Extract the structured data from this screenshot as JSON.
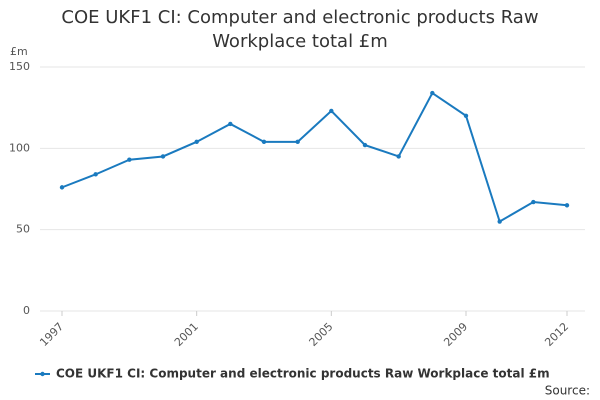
{
  "chart_data": {
    "type": "line",
    "title": "COE UKF1 CI: Computer and electronic products Raw Workplace total £m",
    "y_label": "£m",
    "source": "Source:",
    "x": [
      1997,
      1998,
      1999,
      2000,
      2001,
      2002,
      2003,
      2004,
      2005,
      2006,
      2007,
      2008,
      2009,
      2010,
      2011,
      2012
    ],
    "series": [
      {
        "name": "COE UKF1 CI: Computer and electronic products Raw Workplace total £m",
        "color": "#1a7abf",
        "values": [
          76,
          84,
          93,
          95,
          104,
          115,
          104,
          104,
          123,
          102,
          95,
          134,
          120,
          55,
          67,
          65
        ]
      }
    ],
    "xlim": [
      1997,
      2012
    ],
    "xticks": [
      1997,
      2001,
      2005,
      2009,
      2012
    ],
    "ylim": [
      0,
      150
    ],
    "yticks": [
      0,
      50,
      100,
      150
    ],
    "grid": true,
    "legend": "bottom"
  }
}
